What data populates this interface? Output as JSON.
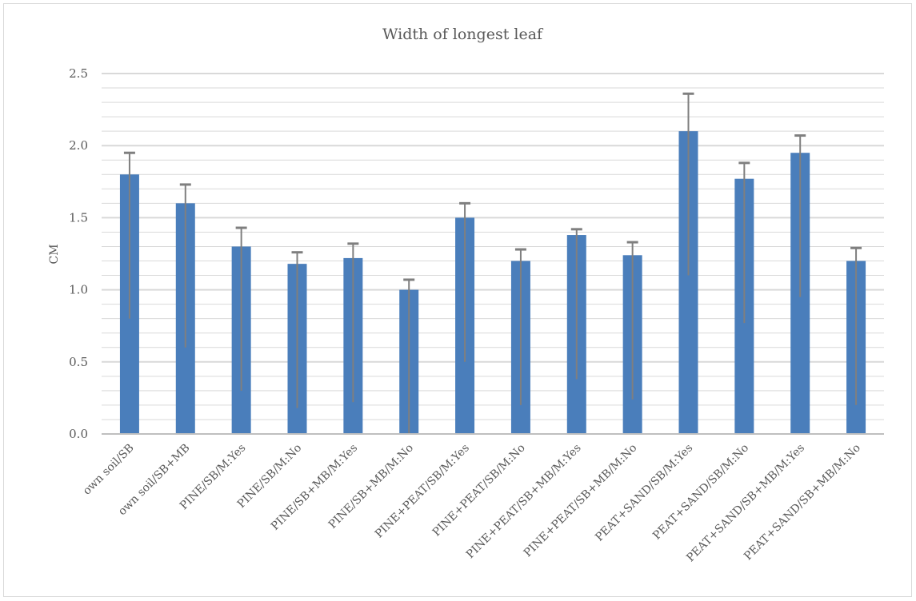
{
  "chart_data": {
    "type": "bar",
    "title": "Width of longest leaf",
    "xlabel": "",
    "ylabel": "CM",
    "ylim": [
      0,
      2.5
    ],
    "yticks": [
      "0.0",
      "0.5",
      "1.0",
      "1.5",
      "2.0",
      "2.5"
    ],
    "grid": true,
    "categories": [
      "own soil/SB",
      "own soil/SB+MB",
      "PINE/SB/M:Yes",
      "PINE/SB/M:No",
      "PINE/SB+MB/M:Yes",
      "PINE/SB+MB/M:No",
      "PINE+PEAT/SB/M:Yes",
      "PINE+PEAT/SB/M:No",
      "PINE+PEAT/SB+MB/M:Yes",
      "PINE+PEAT/SB+MB/M:No",
      "PEAT+SAND/SB/M:Yes",
      "PEAT+SAND/SB/M:No",
      "PEAT+SAND/SB+MB/M:Yes",
      "PEAT+SAND/SB+MB/M:No"
    ],
    "values": [
      1.8,
      1.6,
      1.3,
      1.18,
      1.22,
      1.0,
      1.5,
      1.2,
      1.38,
      1.24,
      2.1,
      1.77,
      1.95,
      1.2
    ],
    "error_upper": [
      1.95,
      1.73,
      1.43,
      1.26,
      1.32,
      1.07,
      1.6,
      1.28,
      1.42,
      1.33,
      2.36,
      1.88,
      2.07,
      1.29
    ],
    "error_lower": [
      0.8,
      0.6,
      0.3,
      0.18,
      0.22,
      0.0,
      0.5,
      0.2,
      0.38,
      0.24,
      1.1,
      0.77,
      0.95,
      0.2
    ],
    "colors": {
      "bar": "#4a7ebb",
      "error": "#7f7f7f",
      "grid": "#d9d9d9",
      "axis": "#bfbfbf"
    }
  }
}
